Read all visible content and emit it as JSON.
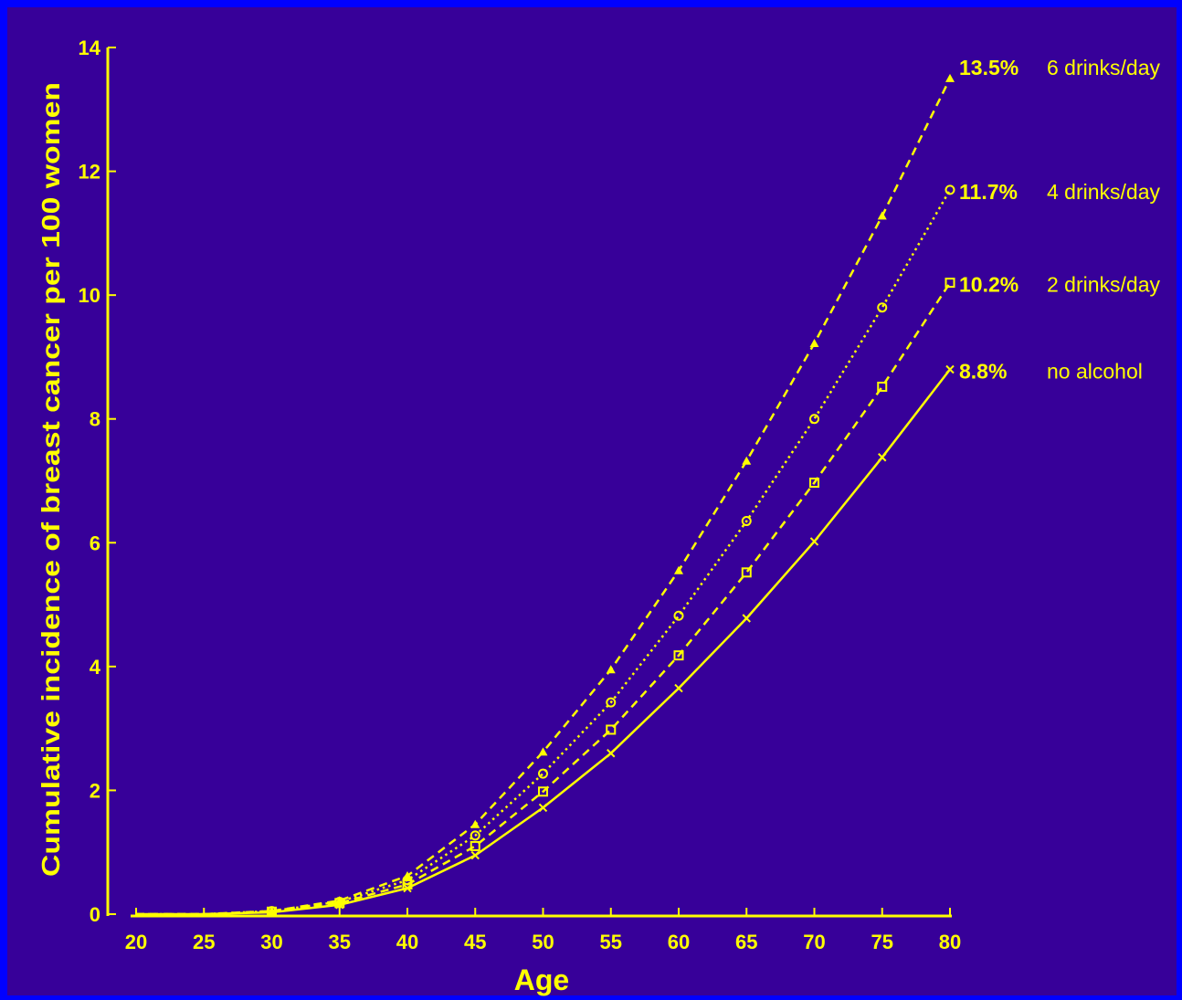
{
  "chart_data": {
    "type": "line",
    "title": "",
    "xlabel": "Age",
    "ylabel": "Cumulative incidence of breast cancer per 100 women",
    "xlim": [
      20,
      80
    ],
    "ylim": [
      0,
      14
    ],
    "x_ticks": [
      "20",
      "25",
      "30",
      "35",
      "40",
      "45",
      "50",
      "55",
      "60",
      "65",
      "70",
      "75",
      "80"
    ],
    "y_ticks": [
      "0",
      "2",
      "4",
      "6",
      "8",
      "10",
      "12",
      "14"
    ],
    "grid": false,
    "legend": "none",
    "x": [
      20,
      25,
      30,
      35,
      40,
      45,
      50,
      55,
      60,
      65,
      70,
      75,
      80
    ],
    "series": [
      {
        "name": "6 drinks/day",
        "end_label": "13.5%",
        "marker": "triangle",
        "line_style": "dashed",
        "values": [
          0,
          0,
          0.05,
          0.22,
          0.62,
          1.45,
          2.62,
          3.95,
          5.55,
          7.32,
          9.22,
          11.28,
          13.5
        ]
      },
      {
        "name": "4 drinks/day",
        "end_label": "11.7%",
        "marker": "circle",
        "line_style": "dotted",
        "values": [
          0,
          0,
          0.05,
          0.2,
          0.55,
          1.27,
          2.27,
          3.42,
          4.82,
          6.35,
          8.0,
          9.8,
          11.7
        ]
      },
      {
        "name": "2 drinks/day",
        "end_label": "10.2%",
        "marker": "square",
        "line_style": "dashed",
        "values": [
          0,
          0,
          0.04,
          0.18,
          0.48,
          1.1,
          1.98,
          2.98,
          4.18,
          5.52,
          6.97,
          8.52,
          10.2
        ]
      },
      {
        "name": "no alcohol",
        "end_label": "8.8%",
        "marker": "cross",
        "line_style": "solid",
        "values": [
          0,
          0,
          0.03,
          0.15,
          0.42,
          0.95,
          1.72,
          2.6,
          3.65,
          4.78,
          6.02,
          7.38,
          8.8
        ]
      }
    ],
    "colors": {
      "outer_border": "#0000FF",
      "background": "#370099",
      "foreground": "#FFFF00"
    }
  }
}
